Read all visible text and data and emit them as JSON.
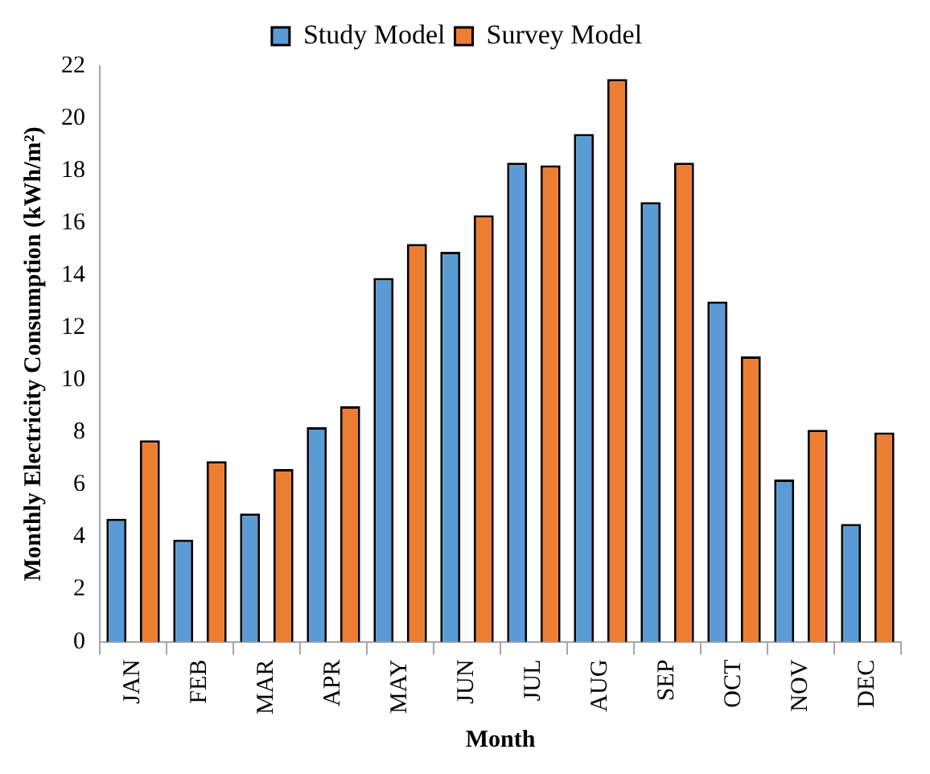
{
  "chart_data": {
    "type": "bar",
    "xlabel": "Month",
    "ylabel": "Monthly Electricity Consumption (kWh/m²)",
    "categories": [
      "JAN",
      "FEB",
      "MAR",
      "APR",
      "MAY",
      "JUN",
      "JUL",
      "AUG",
      "SEP",
      "OCT",
      "NOV",
      "DEC"
    ],
    "series": [
      {
        "name": "Study Model",
        "color": "#5b9bd5",
        "values": [
          4.7,
          3.9,
          4.9,
          8.2,
          13.9,
          14.9,
          18.3,
          19.4,
          16.8,
          13.0,
          6.2,
          4.5
        ]
      },
      {
        "name": "Survey Model",
        "color": "#ed7d31",
        "values": [
          7.7,
          6.9,
          6.6,
          9.0,
          15.2,
          16.3,
          18.2,
          21.5,
          18.3,
          10.9,
          8.1,
          8.0
        ]
      }
    ],
    "ylim": [
      0,
      22
    ],
    "yticks": [
      0,
      2,
      4,
      6,
      8,
      10,
      12,
      14,
      16,
      18,
      20,
      22
    ],
    "grid": false,
    "legend": "top"
  }
}
